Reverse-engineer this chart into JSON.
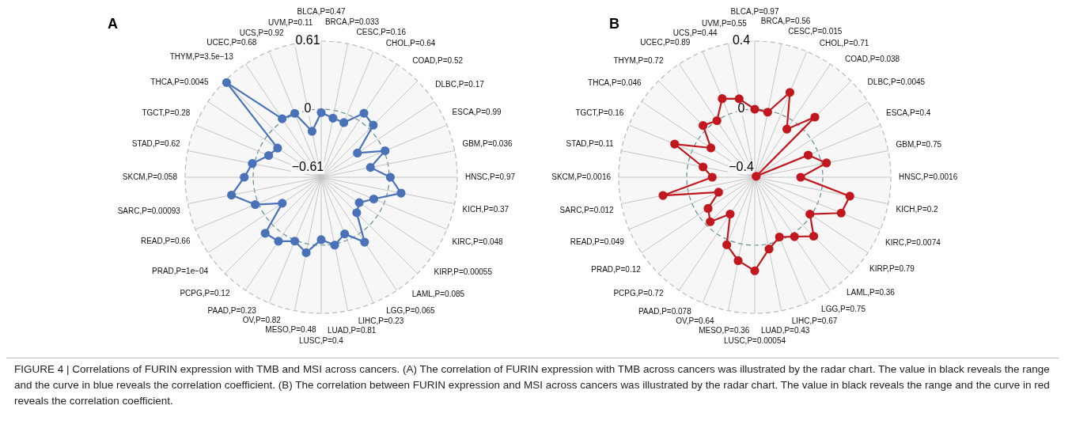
{
  "chart_data": [
    {
      "type": "radar",
      "title": "A",
      "categories": [
        "BLCA,P=0.47",
        "BRCA,P=0.033",
        "CESC,P=0.16",
        "CHOL,P=0.64",
        "COAD,P=0.52",
        "DLBC,P=0.17",
        "ESCA,P=0.99",
        "GBM,P=0.036",
        "HNSC,P=0.97",
        "KICH,P=0.37",
        "KIRC,P=0.048",
        "KIRP,P=0.00055",
        "LAML,P=0.085",
        "LGG,P=0.065",
        "LIHC,P=0.23",
        "LUAD,P=0.81",
        "LUSC,P=0.4",
        "MESO,P=0.48",
        "OV,P=0.82",
        "PAAD,P=0.23",
        "PCPG,P=0.12",
        "PRAD,P=1e−04",
        "READ,P=0.66",
        "SARC,P=0.00093",
        "SKCM,P=0.058",
        "STAD,P=0.62",
        "TGCT,P=0.28",
        "THCA,P=0.0045",
        "THYM,P=3.5e−13",
        "UCEC,P=0.68",
        "UCS,P=0.92",
        "UVM,P=0.11"
      ],
      "series": [
        {
          "color": "#4a72b8",
          "values": [
            -0.03,
            -0.07,
            -0.08,
            0.08,
            0.05,
            -0.22,
            0.01,
            -0.16,
            0.01,
            0.12,
            -0.1,
            -0.2,
            -0.16,
            0.09,
            -0.06,
            0.01,
            -0.05,
            0.08,
            0.01,
            0.08,
            0.1,
            -0.19,
            0.03,
            0.21,
            0.08,
            0.02,
            -0.1,
            -0.14,
            0.59,
            0.02,
            0.01,
            -0.19
          ]
        }
      ],
      "ylim": [
        -0.61,
        0.61
      ],
      "yticks": [
        {
          "value": -0.61,
          "label": "−0.61"
        },
        0,
        0.61
      ],
      "grid": true,
      "marker": "circle",
      "line_style": "solid",
      "annotations": [
        "FIGURE 4 | Correlations of FURIN expression with TMB and MSI across cancers. (A) The correlation of FURIN expression with TMB across cancers was illustrated by the radar chart. The value in black reveals the range and the curve in blue reveals the correlation coefficient. (B) The correlation between FURIN expression and MSI across cancers was illustrated by the radar chart. The value in black reveals the range and the curve in red reveals the correlation coefficient."
      ]
    },
    {
      "type": "radar",
      "title": "B",
      "categories": [
        "BLCA,P=0.97",
        "BRCA,P=0.56",
        "CESC,P=0.015",
        "CHOL,P=0.71",
        "COAD,P=0.038",
        "DLBC,P=0.0045",
        "ESCA,P=0.4",
        "GBM,P=0.75",
        "HNSC,P=0.0016",
        "KICH,P=0.2",
        "KIRC,P=0.0074",
        "KIRP,P=0.79",
        "LAML,P=0.36",
        "LGG,P=0.75",
        "LIHC,P=0.67",
        "LUAD,P=0.43",
        "LUSC,P=0.00054",
        "MESO,P=0.36",
        "OV,P=0.64",
        "PAAD,P=0.078",
        "PCPG,P=0.72",
        "PRAD,P=0.12",
        "READ,P=0.049",
        "SARC,P=0.012",
        "SKCM,P=0.0016",
        "STAD,P=0.11",
        "TGCT,P=0.16",
        "THCA,P=0.046",
        "THYM,P=0.72",
        "UCEC,P=0.89",
        "UCS,P=0.44",
        "UVM,P=0.55"
      ],
      "series": [
        {
          "color": "#c0181e",
          "values": [
            0.0,
            -0.01,
            0.14,
            -0.06,
            0.1,
            -0.39,
            -0.06,
            0.03,
            -0.13,
            0.17,
            0.15,
            -0.01,
            0.09,
            0.02,
            -0.02,
            0.03,
            0.15,
            0.1,
            0.03,
            -0.14,
            -0.03,
            -0.07,
            -0.17,
            0.15,
            -0.15,
            -0.09,
            0.11,
            -0.09,
            0.03,
            0.0,
            0.1,
            0.07
          ]
        }
      ],
      "ylim": [
        -0.4,
        0.4
      ],
      "yticks": [
        {
          "value": -0.4,
          "label": "−0.4"
        },
        0,
        0.4
      ],
      "grid": true,
      "marker": "circle",
      "line_style": "solid"
    }
  ]
}
